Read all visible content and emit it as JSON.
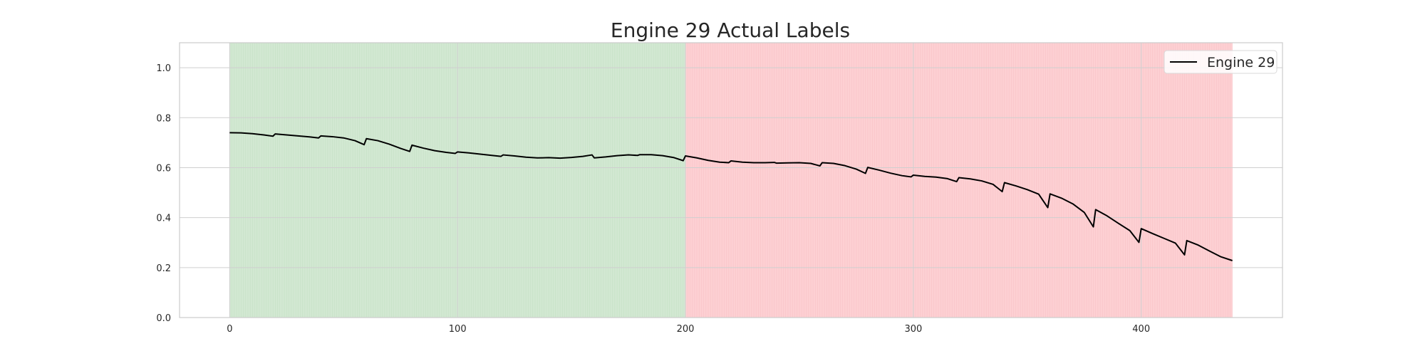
{
  "chart_data": {
    "type": "line",
    "title": "Engine 29 Actual Labels",
    "xlabel": "",
    "ylabel": "",
    "xlim": [
      -22,
      462
    ],
    "ylim": [
      0.0,
      1.1
    ],
    "xticks": [
      0,
      100,
      200,
      300,
      400
    ],
    "yticks": [
      0.0,
      0.2,
      0.4,
      0.6,
      0.8,
      1.0
    ],
    "xtick_labels": [
      "0",
      "100",
      "200",
      "300",
      "400"
    ],
    "ytick_labels": [
      "0.0",
      "0.2",
      "0.4",
      "0.6",
      "0.8",
      "1.0"
    ],
    "grid": true,
    "legend_position": "top-right",
    "regions": [
      {
        "x_start": 0,
        "x_end": 200,
        "color": "#d2e8d2"
      },
      {
        "x_start": 200,
        "x_end": 440,
        "color": "#fdd0d3"
      }
    ],
    "series": [
      {
        "name": "Engine 29",
        "color": "#000000",
        "x": [
          0,
          5,
          10,
          15,
          19,
          20,
          25,
          30,
          35,
          39,
          40,
          45,
          50,
          55,
          59,
          60,
          65,
          70,
          75,
          79,
          80,
          85,
          90,
          95,
          99,
          100,
          105,
          110,
          115,
          119,
          120,
          125,
          130,
          135,
          140,
          145,
          150,
          155,
          159,
          160,
          165,
          170,
          175,
          179,
          180,
          185,
          190,
          195,
          199,
          200,
          205,
          210,
          215,
          219,
          220,
          225,
          230,
          235,
          239,
          240,
          245,
          250,
          255,
          259,
          260,
          265,
          270,
          275,
          279,
          280,
          285,
          290,
          295,
          299,
          300,
          305,
          310,
          315,
          319,
          320,
          325,
          330,
          335,
          339,
          340,
          345,
          350,
          355,
          359,
          360,
          365,
          370,
          375,
          379,
          380,
          385,
          390,
          395,
          399,
          400,
          405,
          410,
          415,
          419,
          420,
          425,
          430,
          435,
          440
        ],
        "y": [
          0.74,
          0.739,
          0.736,
          0.731,
          0.726,
          0.735,
          0.731,
          0.727,
          0.723,
          0.719,
          0.727,
          0.724,
          0.719,
          0.708,
          0.692,
          0.716,
          0.708,
          0.694,
          0.677,
          0.665,
          0.69,
          0.678,
          0.668,
          0.661,
          0.657,
          0.663,
          0.659,
          0.654,
          0.649,
          0.645,
          0.651,
          0.647,
          0.642,
          0.639,
          0.64,
          0.638,
          0.641,
          0.645,
          0.651,
          0.639,
          0.643,
          0.648,
          0.651,
          0.649,
          0.652,
          0.652,
          0.648,
          0.64,
          0.628,
          0.647,
          0.639,
          0.629,
          0.622,
          0.62,
          0.627,
          0.622,
          0.62,
          0.62,
          0.621,
          0.618,
          0.619,
          0.62,
          0.617,
          0.607,
          0.62,
          0.617,
          0.608,
          0.594,
          0.577,
          0.601,
          0.59,
          0.578,
          0.568,
          0.563,
          0.57,
          0.565,
          0.562,
          0.556,
          0.544,
          0.56,
          0.555,
          0.547,
          0.533,
          0.504,
          0.54,
          0.527,
          0.512,
          0.494,
          0.44,
          0.495,
          0.478,
          0.455,
          0.421,
          0.363,
          0.432,
          0.407,
          0.377,
          0.348,
          0.301,
          0.356,
          0.336,
          0.317,
          0.298,
          0.251,
          0.308,
          0.29,
          0.266,
          0.243,
          0.228
        ]
      }
    ]
  }
}
